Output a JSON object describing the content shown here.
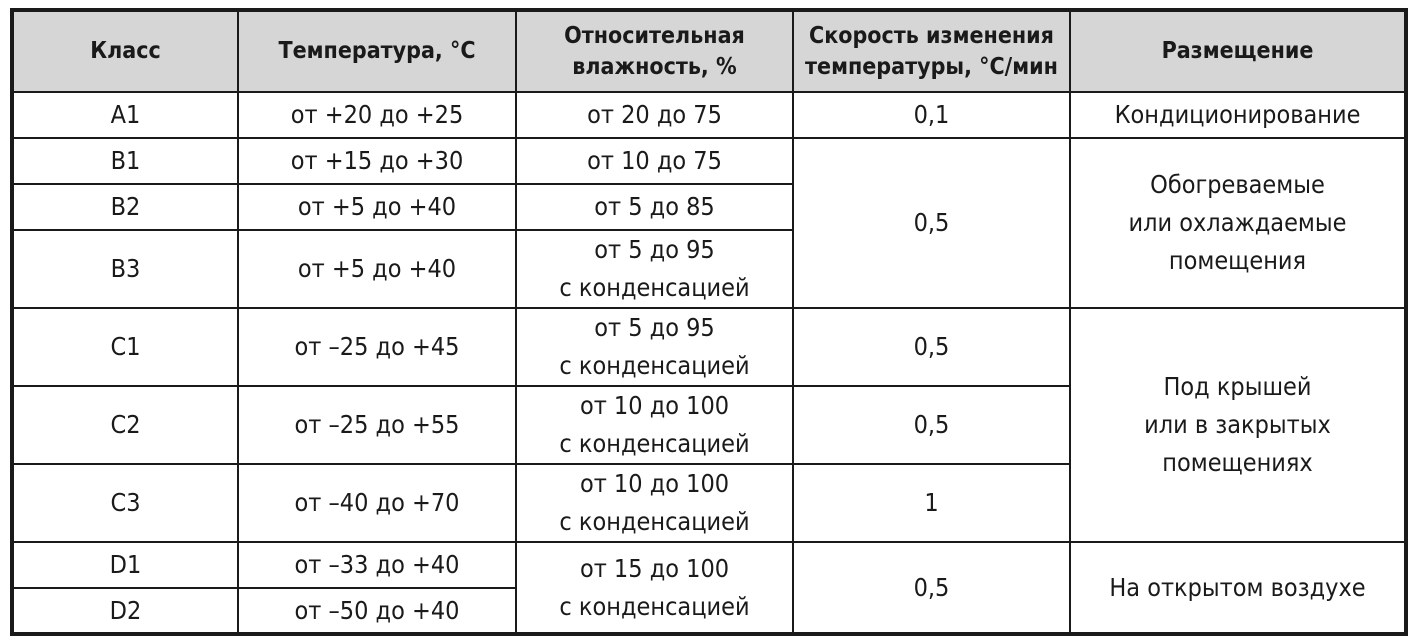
{
  "table": {
    "header": [
      "Класс",
      "Температура, °C",
      "Относительная\nвлажность, %",
      "Скорость изменения\nтемпературы, °С/мин",
      "Размещение"
    ],
    "rows": [
      [
        "A1",
        "от +20 до +25",
        "от 20 до 75",
        "0,1",
        "Кондиционирование"
      ],
      [
        "B1",
        "от +15 до +30",
        "от 10 до 75",
        "0,5",
        "Обогреваемые\nили охлаждаемые\nпомещения"
      ],
      [
        "B2",
        "от +5 до +40",
        "от 5 до 85"
      ],
      [
        "B3",
        "от +5 до +40",
        "от 5 до 95\nс конденсацией"
      ],
      [
        "C1",
        "от –25 до +45",
        "от 5 до 95\nс конденсацией",
        "0,5",
        "Под крышей\nили в закрытых\nпомещениях"
      ],
      [
        "C2",
        "от –25 до +55",
        "от 10 до 100\nс конденсацией",
        "0,5"
      ],
      [
        "C3",
        "от –40 до +70",
        "от 10 до 100\nс конденсацией",
        "1"
      ],
      [
        "D1",
        "от –33 до +40",
        "от 15 до 100\nс конденсацией",
        "0,5",
        "На открытом воздухе"
      ],
      [
        "D2",
        "от –50 до +40"
      ]
    ]
  }
}
